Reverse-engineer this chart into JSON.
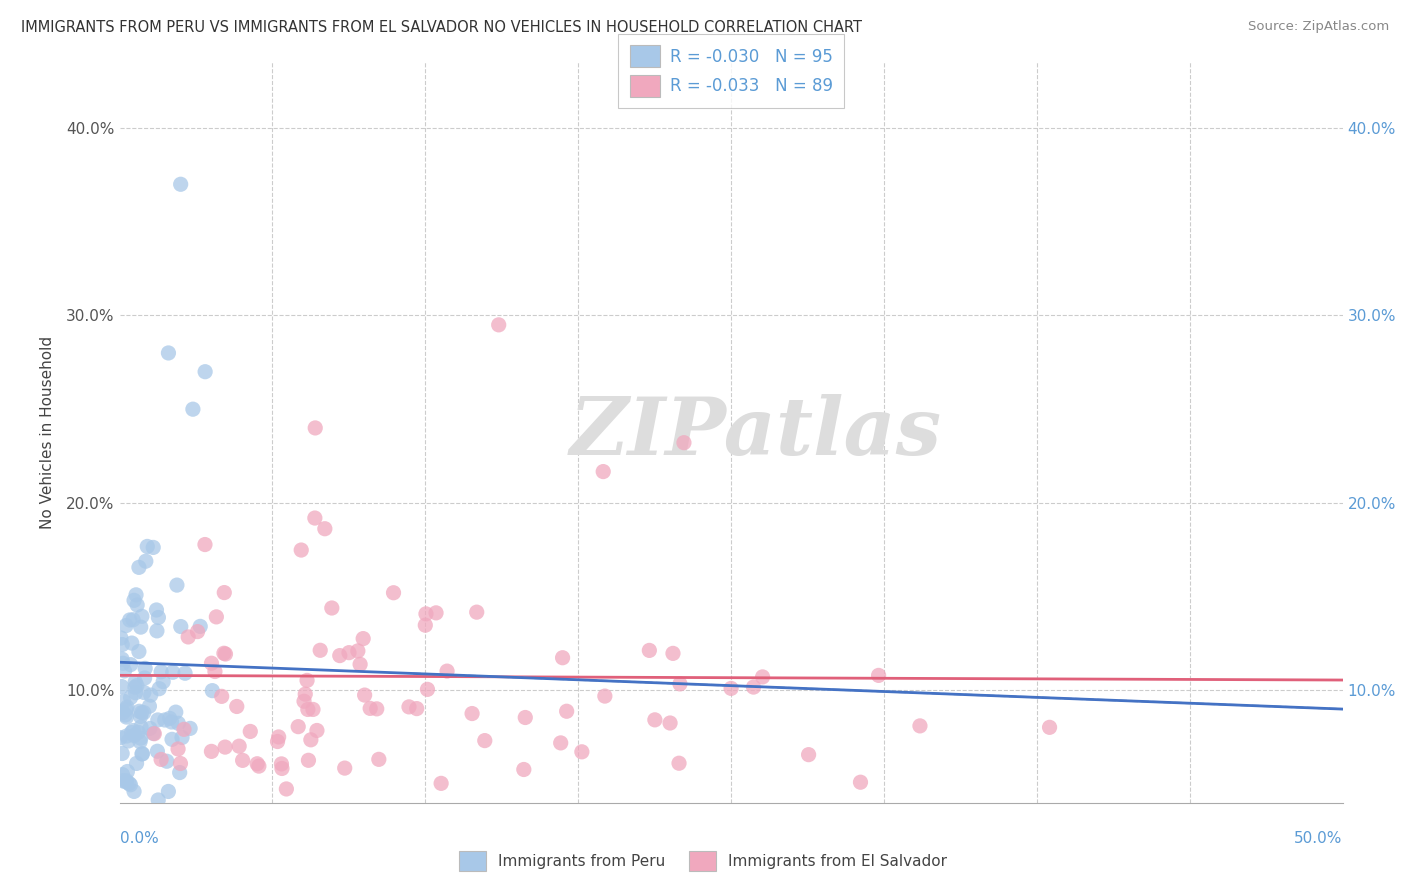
{
  "title": "IMMIGRANTS FROM PERU VS IMMIGRANTS FROM EL SALVADOR NO VEHICLES IN HOUSEHOLD CORRELATION CHART",
  "source": "Source: ZipAtlas.com",
  "ylabel": "No Vehicles in Household",
  "ytick_vals": [
    0.1,
    0.2,
    0.3,
    0.4
  ],
  "ytick_labels": [
    "10.0%",
    "20.0%",
    "30.0%",
    "40.0%"
  ],
  "xlim": [
    0.0,
    0.5
  ],
  "ylim": [
    0.04,
    0.435
  ],
  "legend1_label": "R = -0.030   N = 95",
  "legend2_label": "R = -0.033   N = 89",
  "series1_color": "#A8C8E8",
  "series2_color": "#F0A8BE",
  "series1_name": "Immigrants from Peru",
  "series2_name": "Immigrants from El Salvador",
  "trendline1_color": "#4472C4",
  "trendline2_color": "#E0607A",
  "trendline1_dashed_color": "#A0B8D8",
  "watermark_text": "ZIPatlas",
  "background_color": "#FFFFFF",
  "grid_color": "#CCCCCC",
  "right_axis_color": "#5B9BD5",
  "xlabel_color": "#5B9BD5"
}
